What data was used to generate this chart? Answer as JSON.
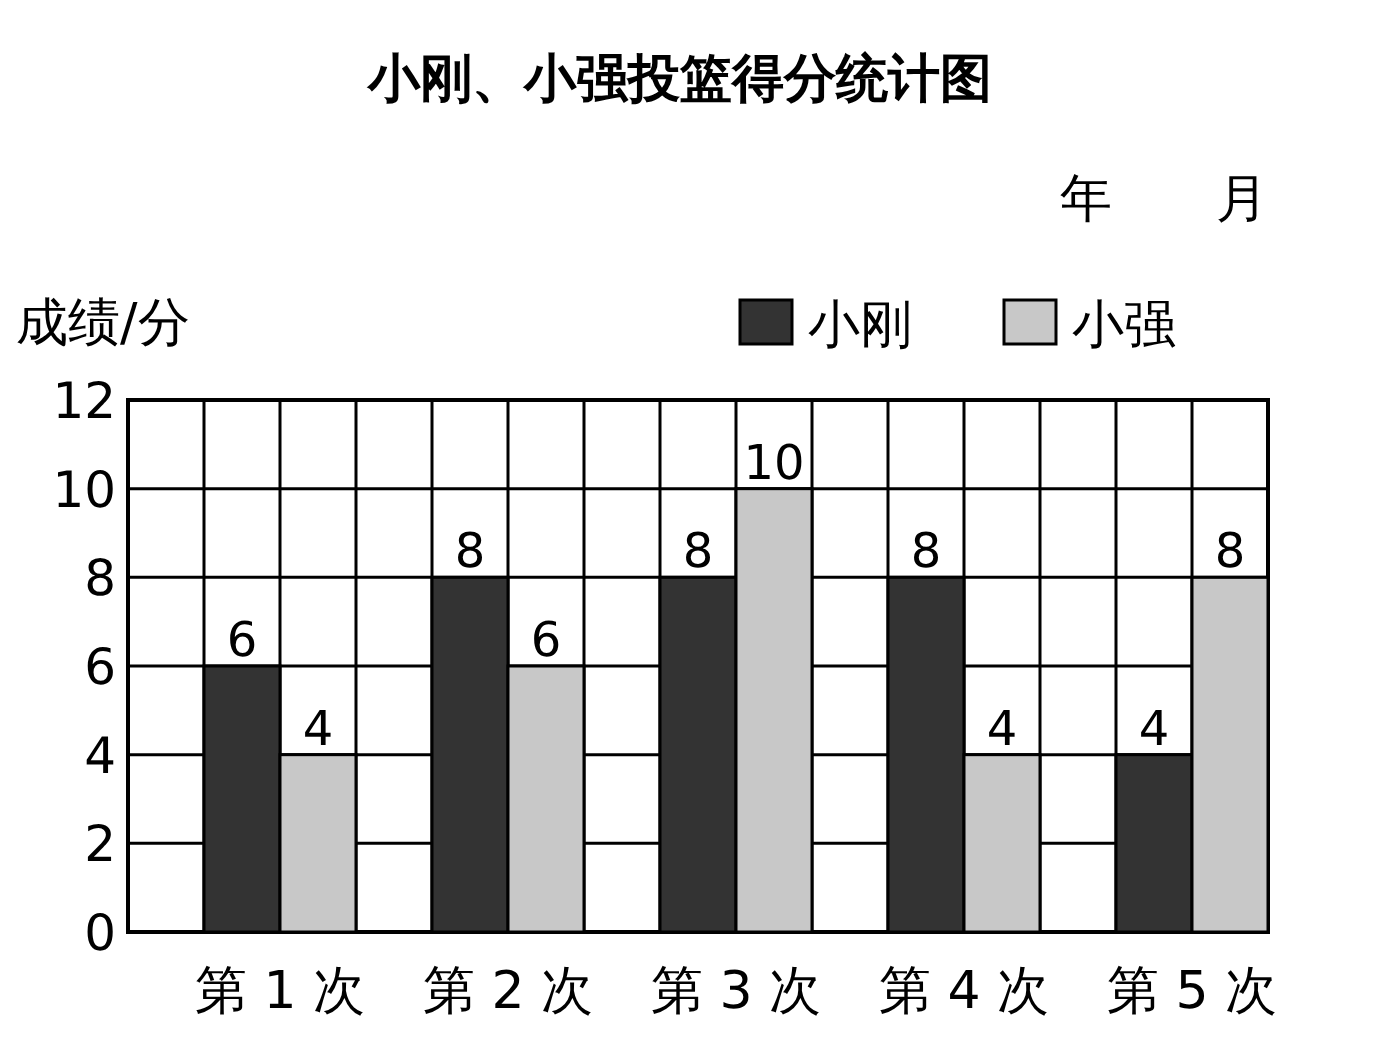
{
  "chart_data": {
    "type": "bar",
    "title": "小刚、小强投篮得分统计图",
    "annotations": [
      "年　　月"
    ],
    "ylabel": "成绩/分",
    "categories": [
      "第 1 次",
      "第 2 次",
      "第 3 次",
      "第 4 次",
      "第 5 次"
    ],
    "series": [
      {
        "name": "小刚",
        "color": "#333333",
        "values": [
          6,
          8,
          8,
          8,
          4
        ]
      },
      {
        "name": "小强",
        "color": "#c8c8c8",
        "values": [
          4,
          6,
          10,
          4,
          8
        ]
      }
    ],
    "ylim": [
      0,
      12
    ],
    "yticks": [
      0,
      2,
      4,
      6,
      8,
      10,
      12
    ],
    "grid": true,
    "legend": "top right",
    "data_labels": true
  }
}
